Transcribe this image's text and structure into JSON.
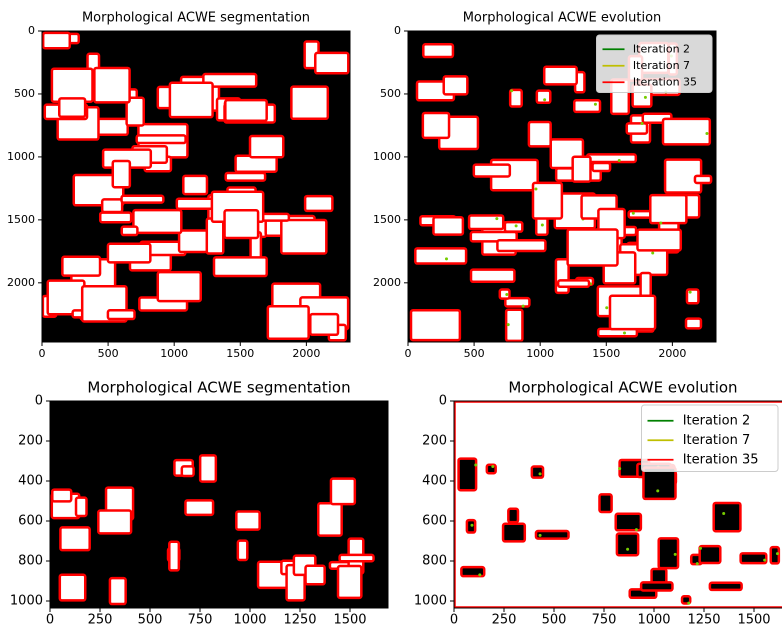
{
  "chart_data": [
    {
      "type": "image",
      "title": "Morphological ACWE segmentation",
      "xlim": [
        0,
        2330
      ],
      "ylim": [
        2470,
        0
      ],
      "xticks": [
        0,
        500,
        1000,
        1500,
        2000
      ],
      "yticks": [
        0,
        500,
        1000,
        1500,
        2000
      ]
    },
    {
      "type": "image",
      "title": "Morphological ACWE evolution",
      "xlim": [
        0,
        2330
      ],
      "ylim": [
        2470,
        0
      ],
      "xticks": [
        0,
        500,
        1000,
        1500,
        2000
      ],
      "yticks": [
        0,
        500,
        1000,
        1500,
        2000
      ],
      "series": [
        {
          "name": "Iteration 2",
          "color": "#008000"
        },
        {
          "name": "Iteration 7",
          "color": "#bfbf00"
        },
        {
          "name": "Iteration 35",
          "color": "#ff0000"
        }
      ],
      "legend": "upper right"
    },
    {
      "type": "image",
      "title": "Morphological ACWE segmentation",
      "xlim": [
        0,
        1690
      ],
      "ylim": [
        1035,
        0
      ],
      "xticks": [
        0,
        250,
        500,
        750,
        1000,
        1250,
        1500
      ],
      "yticks": [
        0,
        200,
        400,
        600,
        800,
        1000
      ]
    },
    {
      "type": "image",
      "title": "Morphological ACWE evolution",
      "xlim": [
        0,
        1690
      ],
      "ylim": [
        1035,
        0
      ],
      "xticks": [
        0,
        250,
        500,
        750,
        1000,
        1250,
        1500
      ],
      "yticks": [
        0,
        200,
        400,
        600,
        800,
        1000
      ],
      "series": [
        {
          "name": "Iteration 2",
          "color": "#008000"
        },
        {
          "name": "Iteration 7",
          "color": "#bfbf00"
        },
        {
          "name": "Iteration 35",
          "color": "#ff0000"
        }
      ],
      "legend": "upper right"
    }
  ]
}
